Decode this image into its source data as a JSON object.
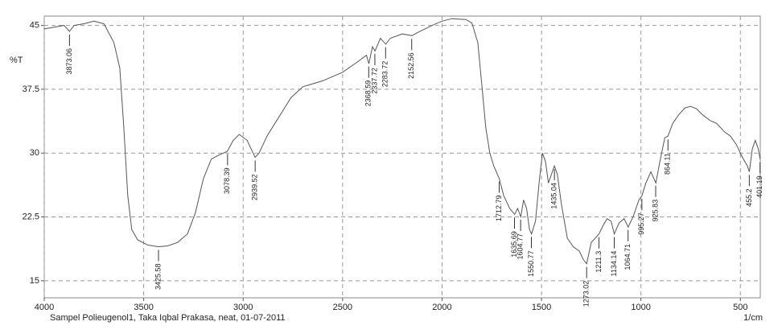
{
  "chart_data": {
    "type": "line",
    "y_label": "%T",
    "x_unit": "1/cm",
    "caption": "Sampel Polieugenol1, Taka Iqbal Prakasa, neat, 01-07-2011",
    "xlim": [
      4000,
      400
    ],
    "xticks": [
      4000,
      3500,
      3000,
      2500,
      2000,
      1500,
      1000,
      500
    ],
    "ylim": [
      13,
      46.1
    ],
    "yticks": [
      15,
      22.5,
      30,
      37.5,
      45
    ],
    "grid": true,
    "x": [
      4000,
      3900,
      3873,
      3850,
      3800,
      3750,
      3700,
      3650,
      3620,
      3600,
      3580,
      3560,
      3530,
      3480,
      3425,
      3380,
      3330,
      3280,
      3240,
      3200,
      3160,
      3120,
      3080,
      3050,
      3020,
      2980,
      2950,
      2940,
      2920,
      2880,
      2840,
      2800,
      2760,
      2700,
      2600,
      2500,
      2420,
      2380,
      2368,
      2350,
      2337,
      2310,
      2283,
      2260,
      2200,
      2152,
      2120,
      2050,
      2000,
      1950,
      1880,
      1850,
      1820,
      1800,
      1780,
      1760,
      1740,
      1712,
      1690,
      1660,
      1635,
      1620,
      1604,
      1590,
      1575,
      1560,
      1550,
      1530,
      1510,
      1495,
      1480,
      1465,
      1450,
      1435,
      1420,
      1400,
      1370,
      1340,
      1310,
      1290,
      1273,
      1250,
      1230,
      1211,
      1190,
      1170,
      1150,
      1134,
      1110,
      1085,
      1064,
      1040,
      1010,
      995,
      975,
      950,
      925,
      905,
      880,
      864,
      840,
      810,
      780,
      750,
      720,
      690,
      650,
      620,
      580,
      550,
      520,
      490,
      465,
      455,
      440,
      425,
      410,
      401
    ],
    "series": [
      {
        "name": "%T",
        "color": "#555555",
        "values": [
          44.6,
          45.0,
          44.3,
          45.0,
          45.2,
          45.5,
          45.2,
          43,
          40,
          33,
          25,
          21,
          19.8,
          19.2,
          19.0,
          19.1,
          19.5,
          20.5,
          23,
          27,
          29.3,
          29.8,
          30.2,
          31.5,
          32.2,
          31.5,
          30.0,
          29.5,
          30,
          32,
          33.5,
          35,
          36.5,
          37.8,
          38.5,
          39.5,
          40.8,
          41.5,
          40.5,
          42.5,
          42.0,
          43.5,
          42.8,
          43.5,
          44,
          43.8,
          44.2,
          45,
          45.5,
          45.8,
          45.7,
          45.3,
          43,
          38,
          33,
          30,
          28.5,
          27,
          25,
          23.5,
          22.8,
          23.5,
          22.5,
          24.5,
          23.5,
          21,
          20.5,
          22,
          27,
          30,
          29,
          26.5,
          27.5,
          28.5,
          27.5,
          24,
          20,
          19,
          18.5,
          17.5,
          17,
          19.5,
          20,
          20.5,
          21.5,
          22.3,
          22,
          20.5,
          21.8,
          22.3,
          21.3,
          22.5,
          24.5,
          25,
          26.5,
          27.8,
          26.5,
          29,
          31.8,
          32,
          33.5,
          34.5,
          35.3,
          35.5,
          35.2,
          34.5,
          33.8,
          33.5,
          32.5,
          32,
          31,
          29.5,
          28.5,
          27.8,
          30.5,
          31.5,
          30.5,
          29.3
        ]
      }
    ],
    "peaks": [
      3873.06,
      3425.58,
      3078.39,
      2939.52,
      2368.59,
      2337.72,
      2283.72,
      2152.56,
      1712.79,
      1635.69,
      1604.77,
      1550.77,
      1435.04,
      1273.02,
      1211.3,
      1134.14,
      1064.71,
      995.27,
      925.83,
      864.11,
      455.2,
      401.19
    ]
  }
}
